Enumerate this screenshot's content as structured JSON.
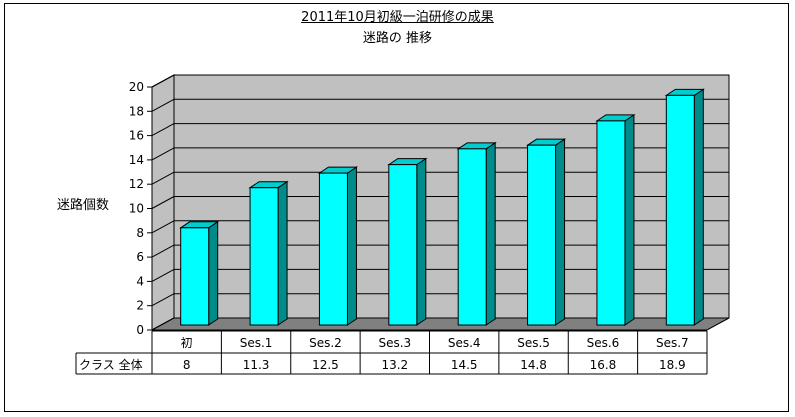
{
  "chart_data": {
    "type": "bar",
    "title": "2011年10月初級一泊研修の成果",
    "subtitle": "迷路の 推移",
    "ylabel": "迷路個数",
    "xlabel": "",
    "categories": [
      "初",
      "Ses.1",
      "Ses.2",
      "Ses.3",
      "Ses.4",
      "Ses.5",
      "Ses.6",
      "Ses.7"
    ],
    "series": [
      {
        "name": "クラス 全体",
        "values": [
          8,
          11.3,
          12.5,
          13.2,
          14.5,
          14.8,
          16.8,
          18.9
        ]
      }
    ],
    "ylim": [
      0,
      20
    ],
    "yticks": [
      0,
      2,
      4,
      6,
      8,
      10,
      12,
      14,
      16,
      18,
      20
    ],
    "table_values": [
      "8",
      "11.3",
      "12.5",
      "13.2",
      "14.5",
      "14.8",
      "16.8",
      "18.9"
    ],
    "grid": true,
    "colors": {
      "bar_front": "#00ffff",
      "bar_side": "#008b8b",
      "bar_top": "#00cdcd",
      "wall": "#c0c0c0",
      "floor": "#808080"
    }
  }
}
